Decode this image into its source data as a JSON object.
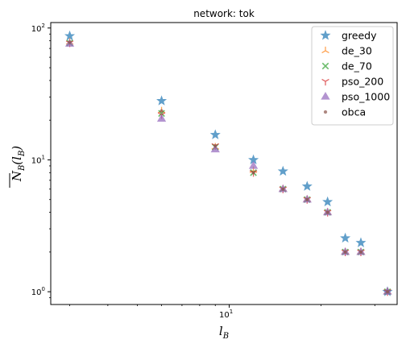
{
  "chart_data": {
    "type": "scatter",
    "title": "network: tok",
    "xlabel": "l_B",
    "ylabel": "N_B(l_B)",
    "xscale": "log",
    "yscale": "log",
    "xlim": [
      2.6,
      35.5
    ],
    "ylim": [
      0.8,
      110
    ],
    "xticks": [
      {
        "value": 10,
        "base": "10",
        "exp": "1"
      }
    ],
    "yticks": [
      {
        "value": 1,
        "base": "10",
        "exp": "0"
      },
      {
        "value": 10,
        "base": "10",
        "exp": "1"
      },
      {
        "value": 100,
        "base": "10",
        "exp": "2"
      }
    ],
    "legend_position": "top-right",
    "grid": false,
    "series": [
      {
        "name": "greedy",
        "marker": "star",
        "color": "#1f77b4",
        "x": [
          3,
          6,
          9,
          12,
          15,
          18,
          21,
          24,
          27,
          33
        ],
        "y": [
          87,
          28,
          15.5,
          10,
          8.2,
          6.3,
          4.8,
          2.55,
          2.35,
          1.0
        ]
      },
      {
        "name": "de_30",
        "marker": "tri",
        "color": "#ff7f0e",
        "x": [
          3,
          6,
          9,
          12,
          15,
          18,
          21,
          24,
          27,
          33
        ],
        "y": [
          78,
          23.5,
          12.5,
          8.3,
          6.0,
          5.0,
          4.0,
          2.0,
          2.0,
          1.0
        ]
      },
      {
        "name": "de_70",
        "marker": "x",
        "color": "#2ca02c",
        "x": [
          3,
          6,
          9,
          12,
          15,
          18,
          21,
          24,
          27,
          33
        ],
        "y": [
          77,
          22.5,
          12.5,
          8.0,
          6.0,
          5.0,
          4.0,
          2.0,
          2.0,
          1.0
        ]
      },
      {
        "name": "pso_200",
        "marker": "y",
        "color": "#d62728",
        "x": [
          3,
          6,
          9,
          12,
          15,
          18,
          21,
          24,
          27,
          33
        ],
        "y": [
          77,
          22,
          12.8,
          8.0,
          6.0,
          5.0,
          4.0,
          2.0,
          2.0,
          1.0
        ]
      },
      {
        "name": "pso_1000",
        "marker": "triangle",
        "color": "#9467bd",
        "x": [
          3,
          6,
          9,
          12,
          15,
          18,
          21,
          24,
          27,
          33
        ],
        "y": [
          76,
          20.5,
          12.0,
          9.0,
          6.0,
          5.0,
          4.0,
          2.0,
          2.0,
          1.0
        ]
      },
      {
        "name": "obca",
        "marker": "dot",
        "color": "#8c564b",
        "x": [
          3,
          6,
          9,
          12,
          15,
          18,
          21,
          24,
          27,
          33
        ],
        "y": [
          78,
          23.5,
          12.8,
          8.0,
          6.0,
          5.0,
          4.0,
          2.0,
          2.0,
          1.0
        ]
      }
    ]
  }
}
